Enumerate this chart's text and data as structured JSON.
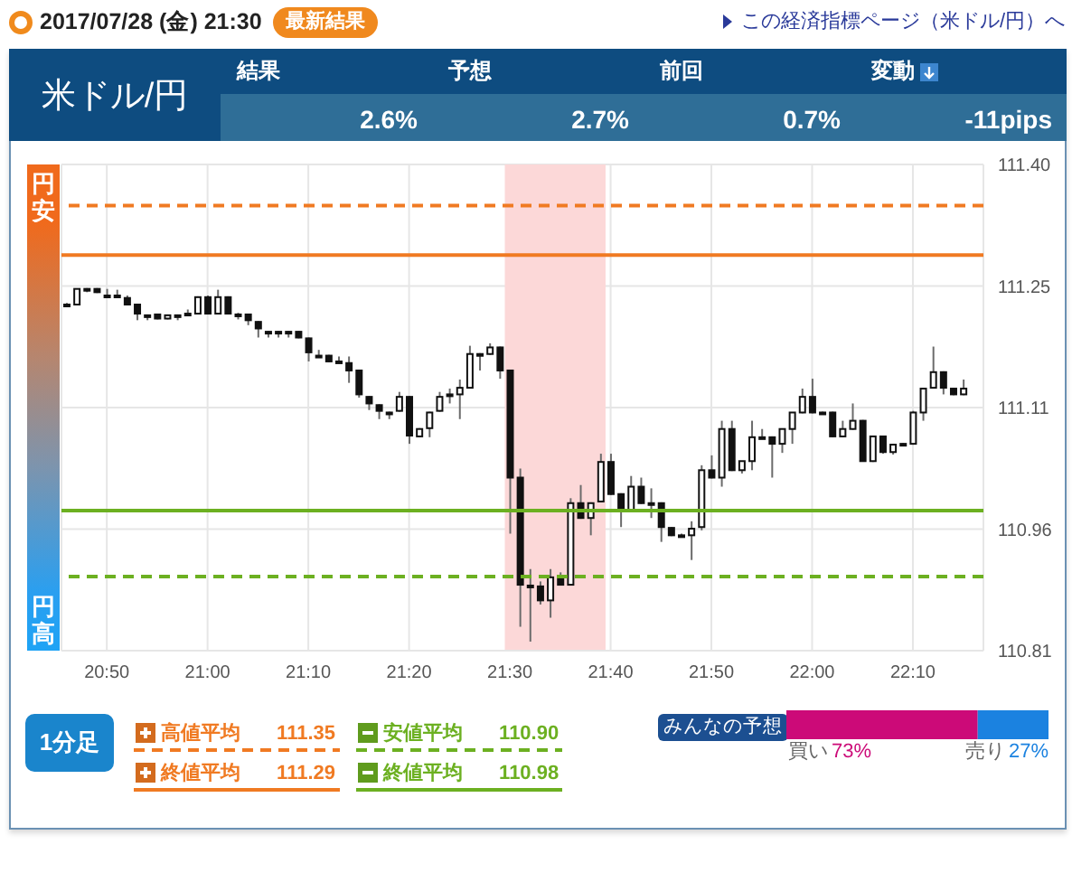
{
  "chart_data": [
    {
      "type": "other",
      "title": "米ドル/円",
      "categories": [
        "結果",
        "予想",
        "前回",
        "変動"
      ],
      "value_labels": [
        "2.6%",
        "2.7%",
        "0.7%",
        "-11pips"
      ],
      "annotations": [
        "2017/07/28 (金) 21:30",
        "最新結果",
        "この経済指標ページ（米ドル/円）へ"
      ]
    },
    {
      "type": "candlestick",
      "color": "#111111",
      "grid": true,
      "legend": "bottom",
      "x": [
        "2017-07-28T20:46",
        "2017-07-28T20:47",
        "2017-07-28T20:48",
        "2017-07-28T20:49",
        "2017-07-28T20:50",
        "2017-07-28T20:51",
        "2017-07-28T20:52",
        "2017-07-28T20:53",
        "2017-07-28T20:54",
        "2017-07-28T20:55",
        "2017-07-28T20:56",
        "2017-07-28T20:57",
        "2017-07-28T20:58",
        "2017-07-28T20:59",
        "2017-07-28T21:00",
        "2017-07-28T21:01",
        "2017-07-28T21:02",
        "2017-07-28T21:03",
        "2017-07-28T21:04",
        "2017-07-28T21:05",
        "2017-07-28T21:06",
        "2017-07-28T21:07",
        "2017-07-28T21:08",
        "2017-07-28T21:09",
        "2017-07-28T21:10",
        "2017-07-28T21:11",
        "2017-07-28T21:12",
        "2017-07-28T21:13",
        "2017-07-28T21:14",
        "2017-07-28T21:15",
        "2017-07-28T21:16",
        "2017-07-28T21:17",
        "2017-07-28T21:18",
        "2017-07-28T21:19",
        "2017-07-28T21:20",
        "2017-07-28T21:21",
        "2017-07-28T21:22",
        "2017-07-28T21:23",
        "2017-07-28T21:24",
        "2017-07-28T21:25",
        "2017-07-28T21:26",
        "2017-07-28T21:27",
        "2017-07-28T21:28",
        "2017-07-28T21:29",
        "2017-07-28T21:30",
        "2017-07-28T21:31",
        "2017-07-28T21:32",
        "2017-07-28T21:33",
        "2017-07-28T21:34",
        "2017-07-28T21:35",
        "2017-07-28T21:36",
        "2017-07-28T21:37",
        "2017-07-28T21:38",
        "2017-07-28T21:39",
        "2017-07-28T21:40",
        "2017-07-28T21:41",
        "2017-07-28T21:42",
        "2017-07-28T21:43",
        "2017-07-28T21:44",
        "2017-07-28T21:45",
        "2017-07-28T21:46",
        "2017-07-28T21:47",
        "2017-07-28T21:48",
        "2017-07-28T21:49",
        "2017-07-28T21:50",
        "2017-07-28T21:51",
        "2017-07-28T21:52",
        "2017-07-28T21:53",
        "2017-07-28T21:54",
        "2017-07-28T21:55",
        "2017-07-28T21:56",
        "2017-07-28T21:57",
        "2017-07-28T21:58",
        "2017-07-28T21:59",
        "2017-07-28T22:00",
        "2017-07-28T22:01",
        "2017-07-28T22:02",
        "2017-07-28T22:03",
        "2017-07-28T22:04",
        "2017-07-28T22:05",
        "2017-07-28T22:06",
        "2017-07-28T22:07",
        "2017-07-28T22:08",
        "2017-07-28T22:09",
        "2017-07-28T22:10",
        "2017-07-28T22:11",
        "2017-07-28T22:12",
        "2017-07-28T22:13",
        "2017-07-28T22:14",
        "2017-07-28T22:15"
      ],
      "ohlc": [
        [
          111.23,
          111.232,
          111.228,
          111.23
        ],
        [
          111.23,
          111.249,
          111.229,
          111.249
        ],
        [
          111.249,
          111.25,
          111.245,
          111.249
        ],
        [
          111.249,
          111.25,
          111.244,
          111.245
        ],
        [
          111.241,
          111.249,
          111.24,
          111.241
        ],
        [
          111.241,
          111.248,
          111.24,
          111.241
        ],
        [
          111.238,
          111.241,
          111.229,
          111.23
        ],
        [
          111.23,
          111.231,
          111.211,
          111.219
        ],
        [
          111.217,
          111.218,
          111.211,
          111.217
        ],
        [
          111.218,
          111.219,
          111.212,
          111.213
        ],
        [
          111.213,
          111.218,
          111.212,
          111.217
        ],
        [
          111.217,
          111.218,
          111.211,
          111.217
        ],
        [
          111.219,
          111.224,
          111.218,
          111.219
        ],
        [
          111.219,
          111.24,
          111.218,
          111.239
        ],
        [
          111.239,
          111.241,
          111.218,
          111.219
        ],
        [
          111.219,
          111.248,
          111.218,
          111.239
        ],
        [
          111.239,
          111.24,
          111.218,
          111.219
        ],
        [
          111.218,
          111.22,
          111.212,
          111.218
        ],
        [
          111.218,
          111.219,
          111.205,
          111.211
        ],
        [
          111.209,
          111.21,
          111.19,
          111.201
        ],
        [
          111.197,
          111.198,
          111.19,
          111.197
        ],
        [
          111.197,
          111.198,
          111.19,
          111.197
        ],
        [
          111.197,
          111.198,
          111.19,
          111.197
        ],
        [
          111.197,
          111.198,
          111.189,
          111.19
        ],
        [
          111.189,
          111.19,
          111.161,
          111.172
        ],
        [
          111.168,
          111.175,
          111.167,
          111.168
        ],
        [
          111.168,
          111.169,
          111.16,
          111.161
        ],
        [
          111.161,
          111.167,
          111.16,
          111.161
        ],
        [
          111.159,
          111.167,
          111.135,
          111.15
        ],
        [
          111.15,
          111.151,
          111.117,
          111.121
        ],
        [
          111.118,
          111.119,
          111.102,
          111.11
        ],
        [
          111.108,
          111.109,
          111.091,
          111.101
        ],
        [
          111.099,
          111.1,
          111.091,
          111.099
        ],
        [
          111.101,
          111.124,
          111.1,
          111.118
        ],
        [
          111.118,
          111.119,
          111.061,
          111.071
        ],
        [
          111.07,
          111.08,
          111.069,
          111.079
        ],
        [
          111.08,
          111.1,
          111.069,
          111.099
        ],
        [
          111.101,
          111.124,
          111.1,
          111.118
        ],
        [
          111.121,
          111.128,
          111.11,
          111.121
        ],
        [
          111.121,
          111.139,
          111.091,
          111.129
        ],
        [
          111.129,
          111.18,
          111.128,
          111.17
        ],
        [
          111.17,
          111.171,
          111.15,
          111.17
        ],
        [
          111.17,
          111.183,
          111.169,
          111.178
        ],
        [
          111.178,
          111.179,
          111.14,
          111.15
        ],
        [
          111.15,
          111.151,
          110.952,
          111.02
        ],
        [
          111.02,
          111.031,
          110.839,
          110.89
        ],
        [
          110.889,
          110.909,
          110.821,
          110.889
        ],
        [
          110.888,
          110.894,
          110.866,
          110.871
        ],
        [
          110.871,
          110.909,
          110.85,
          110.899
        ],
        [
          110.899,
          110.905,
          110.889,
          110.89
        ],
        [
          110.89,
          110.995,
          110.889,
          110.989
        ],
        [
          110.989,
          111.011,
          110.97,
          110.971
        ],
        [
          110.971,
          110.99,
          110.95,
          110.989
        ],
        [
          110.991,
          111.049,
          110.99,
          111.039
        ],
        [
          111.039,
          111.049,
          110.999,
          111.0
        ],
        [
          111.0,
          111.001,
          110.96,
          110.98
        ],
        [
          110.98,
          111.022,
          110.979,
          111.009
        ],
        [
          111.009,
          111.02,
          110.988,
          110.989
        ],
        [
          110.989,
          111.007,
          110.971,
          110.989
        ],
        [
          110.989,
          110.99,
          110.942,
          110.96
        ],
        [
          110.959,
          110.96,
          110.949,
          110.95
        ],
        [
          110.95,
          110.952,
          110.948,
          110.95
        ],
        [
          110.95,
          110.967,
          110.92,
          110.958
        ],
        [
          110.96,
          111.035,
          110.956,
          111.029
        ],
        [
          111.029,
          111.047,
          111.019,
          111.02
        ],
        [
          111.02,
          111.089,
          111.009,
          111.079
        ],
        [
          111.079,
          111.089,
          111.028,
          111.029
        ],
        [
          111.029,
          111.04,
          111.025,
          111.04
        ],
        [
          111.04,
          111.089,
          111.029,
          111.069
        ],
        [
          111.069,
          111.079,
          111.068,
          111.069
        ],
        [
          111.069,
          111.07,
          111.02,
          111.061
        ],
        [
          111.061,
          111.079,
          111.05,
          111.079
        ],
        [
          111.079,
          111.099,
          111.061,
          111.099
        ],
        [
          111.099,
          111.128,
          111.098,
          111.118
        ],
        [
          111.118,
          111.14,
          111.098,
          111.099
        ],
        [
          111.099,
          111.1,
          111.098,
          111.099
        ],
        [
          111.099,
          111.1,
          111.069,
          111.07
        ],
        [
          111.07,
          111.089,
          111.069,
          111.079
        ],
        [
          111.079,
          111.11,
          111.078,
          111.089
        ],
        [
          111.089,
          111.09,
          111.04,
          111.04
        ],
        [
          111.04,
          111.071,
          111.039,
          111.07
        ],
        [
          111.07,
          111.071,
          111.049,
          111.051
        ],
        [
          111.051,
          111.061,
          111.048,
          111.06
        ],
        [
          111.061,
          111.062,
          111.058,
          111.061
        ],
        [
          111.061,
          111.101,
          111.06,
          111.099
        ],
        [
          111.099,
          111.129,
          111.089,
          111.128
        ],
        [
          111.129,
          111.179,
          111.128,
          111.148
        ],
        [
          111.148,
          111.149,
          111.121,
          111.129
        ],
        [
          111.128,
          111.129,
          111.12,
          111.121
        ],
        [
          111.121,
          111.139,
          111.12,
          111.128
        ]
      ],
      "xlim": [
        "2017-07-28T20:45:30",
        "2017-07-28T22:17"
      ],
      "xticks": [
        {
          "value": "2017-07-28T20:50",
          "label": "20:50"
        },
        {
          "value": "2017-07-28T21:00",
          "label": "21:00"
        },
        {
          "value": "2017-07-28T21:10",
          "label": "21:10"
        },
        {
          "value": "2017-07-28T21:20",
          "label": "21:20"
        },
        {
          "value": "2017-07-28T21:30",
          "label": "21:30"
        },
        {
          "value": "2017-07-28T21:40",
          "label": "21:40"
        },
        {
          "value": "2017-07-28T21:50",
          "label": "21:50"
        },
        {
          "value": "2017-07-28T22:00",
          "label": "22:00"
        },
        {
          "value": "2017-07-28T22:10",
          "label": "22:10"
        }
      ],
      "ylim": [
        110.81,
        111.4
      ],
      "yticks": [
        110.81,
        {
          "value": 110.9575,
          "label": "110.96"
        },
        {
          "value": 111.105,
          "label": "111.11"
        },
        {
          "value": 111.2525,
          "label": "111.25"
        },
        {
          "value": 111.4,
          "label": "111.40"
        }
      ],
      "ref_lines": [
        {
          "axis": "y",
          "value": 111.35,
          "label": "高値平均 111.35",
          "color": "#f07a22",
          "line_style": "dashed"
        },
        {
          "axis": "y",
          "value": 111.29,
          "label": "終値平均 111.29",
          "color": "#f07a22",
          "line_style": "solid"
        },
        {
          "axis": "y",
          "value": 110.9,
          "label": "安値平均 110.90",
          "color": "#6cb021",
          "line_style": "dashed"
        },
        {
          "axis": "y",
          "value": 110.98,
          "label": "終値平均 110.98",
          "color": "#6cb021",
          "line_style": "solid"
        }
      ],
      "bands": [
        {
          "axis": "x",
          "from": "2017-07-28T21:29:30",
          "to": "2017-07-28T21:39:30",
          "color": "#fcd8d8"
        }
      ],
      "annotations": [
        "円安",
        "円高",
        "1分足"
      ]
    },
    {
      "type": "bar",
      "orientation": "horizontal",
      "stacked": true,
      "title": "みんなの予想",
      "categories": [
        null
      ],
      "series": [
        {
          "name": "買い",
          "color": "#cc0a78",
          "values": [
            73
          ],
          "value_labels": [
            "73%"
          ]
        },
        {
          "name": "売り",
          "color": "#1b82e0",
          "values": [
            27
          ],
          "value_labels": [
            "27%"
          ]
        }
      ]
    }
  ]
}
